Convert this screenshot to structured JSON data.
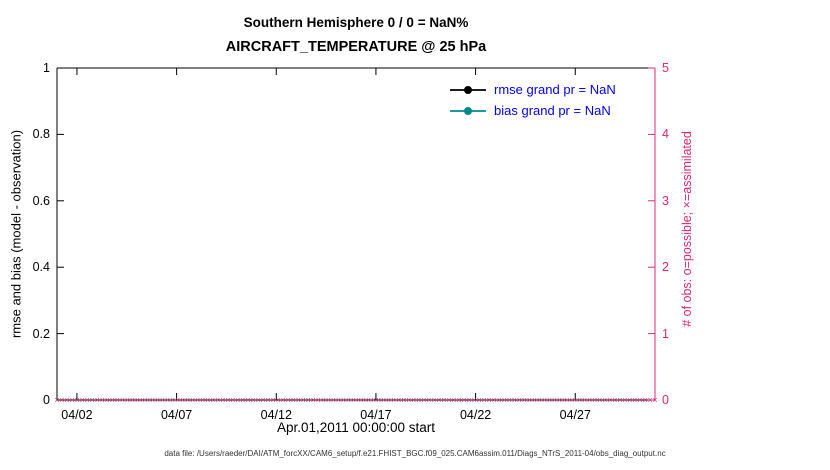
{
  "colors": {
    "obs_pink": "#d92975",
    "legend_blue": "#0000ff",
    "rmse_black": "#000000",
    "bias_teal": "#008b8b",
    "axis_black": "#000000"
  },
  "chart_data": {
    "type": "line",
    "title": "Southern Hemisphere 0 / 0 = NaN%",
    "subtitle": "AIRCRAFT_TEMPERATURE @ 25 hPa",
    "xlabel": "Apr.01,2011 00:00:00 start",
    "ylabel_left": "rmse and bias (model - observation)",
    "ylabel_right": "# of obs: o=possible; ×=assimilated",
    "x_range_days": [
      0,
      30
    ],
    "x_tick_days": [
      1,
      6,
      11,
      16,
      21,
      26
    ],
    "x_tick_labels": [
      "04/02",
      "04/07",
      "04/12",
      "04/17",
      "04/22",
      "04/27"
    ],
    "ylim_left": [
      0,
      1
    ],
    "ytick_values_left": [
      0,
      0.2,
      0.4,
      0.6,
      0.8,
      1
    ],
    "yticks_left": [
      "0",
      "0.2",
      "0.4",
      "0.6",
      "0.8",
      "1"
    ],
    "ylim_right": [
      0,
      5
    ],
    "ytick_values_right": [
      0,
      1,
      2,
      3,
      4,
      5
    ],
    "yticks_right": [
      "0",
      "1",
      "2",
      "3",
      "4",
      "5"
    ],
    "grid": "off",
    "series": [
      {
        "name": "rmse grand pr = NaN",
        "color_key": "rmse_black",
        "values": []
      },
      {
        "name": "bias grand pr = NaN",
        "color_key": "bias_teal",
        "values": []
      }
    ],
    "obs_markers": {
      "symbol": "×",
      "value_right_axis": 0,
      "bins": 120,
      "start_day": 0,
      "end_day": 30,
      "color_key": "obs_pink"
    },
    "legend": {
      "position": "top-right-inside",
      "entries": [
        "rmse grand pr = NaN",
        "bias grand pr = NaN"
      ]
    }
  },
  "footer": {
    "caption": "data file: /Users/raeder/DAI/ATM_forcXX/CAM6_setup/f.e21.FHIST_BGC.f09_025.CAM6assim.011/Diags_NTrS_2011-04/obs_diag_output.nc"
  }
}
